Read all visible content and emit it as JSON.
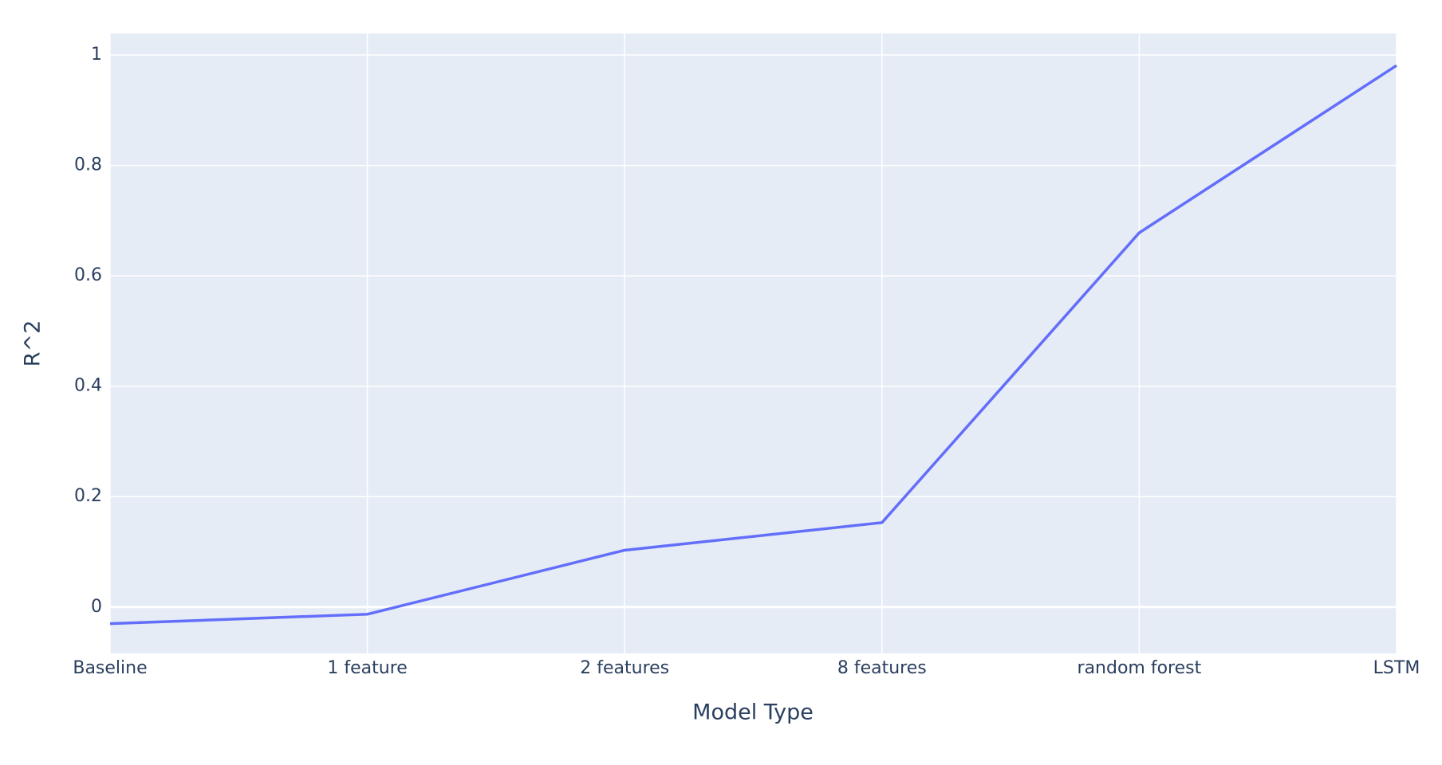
{
  "chart_data": {
    "type": "line",
    "x_label": "Model Type",
    "y_label": "R^2",
    "categories": [
      "Baseline",
      "1 feature",
      "2 features",
      "8 features",
      "random forest",
      "LSTM"
    ],
    "values": [
      -0.03,
      -0.013,
      0.103,
      0.153,
      0.678,
      0.981
    ],
    "color": "#636efa",
    "ylim": [
      -0.084,
      1.039
    ],
    "yticks": [
      0,
      0.2,
      0.4,
      0.6,
      0.8,
      1
    ],
    "grid": true
  }
}
